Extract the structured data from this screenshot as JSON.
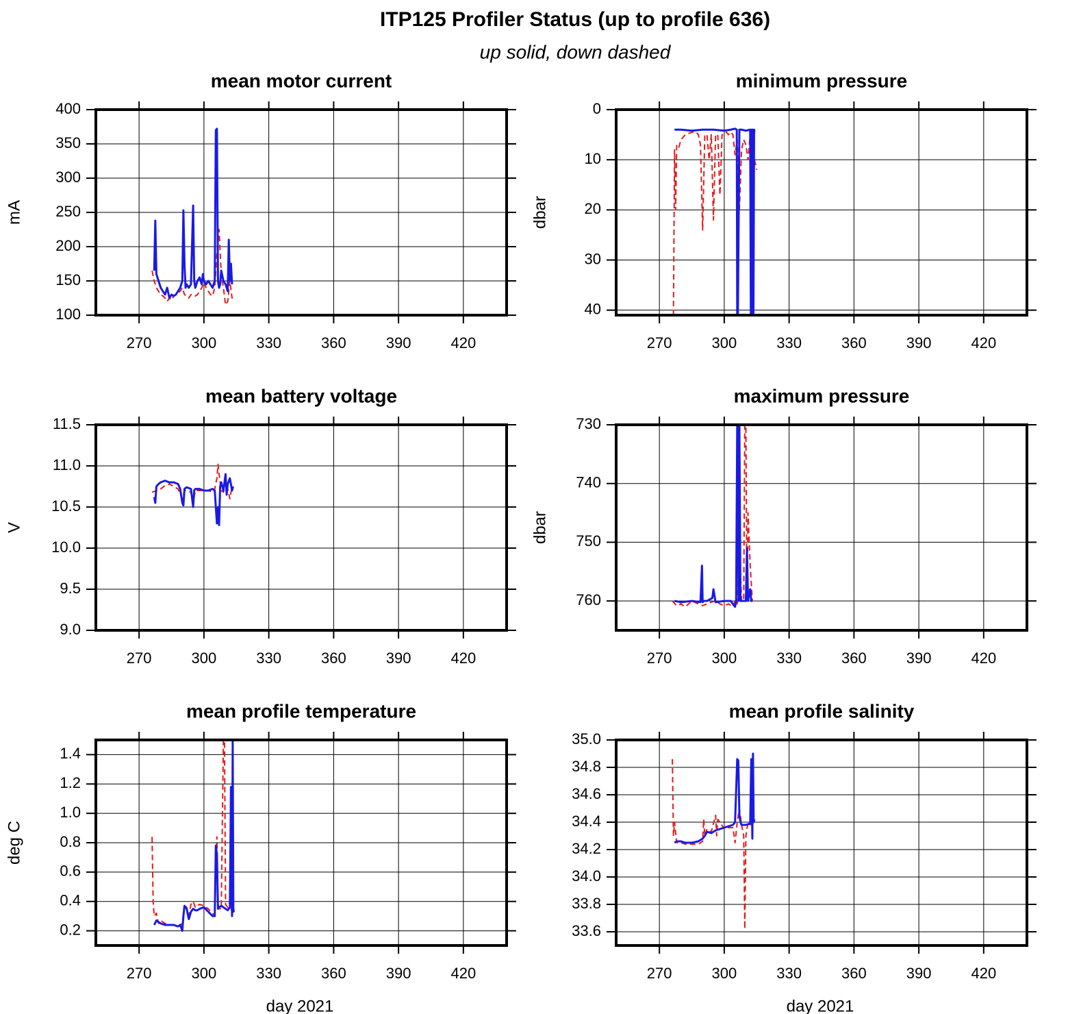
{
  "title": "ITP125 Profiler Status (up to profile 636)",
  "subtitle": "up solid, down dashed",
  "chart_data": [
    {
      "type": "line",
      "title": "mean motor current",
      "y_label": "mA",
      "xlim": [
        250,
        440
      ],
      "xticks": [
        270,
        300,
        330,
        360,
        390,
        420
      ],
      "ylim": [
        100,
        400
      ],
      "yticks": [
        100,
        150,
        200,
        250,
        300,
        350,
        400
      ],
      "y_inverted": false,
      "grid": true,
      "series": [
        {
          "color": "#e41a1c",
          "line_style": "dashed",
          "x": [
            276,
            277,
            278,
            279,
            280,
            281,
            282,
            283,
            284,
            285,
            286,
            287,
            288,
            289,
            290,
            291,
            292,
            293,
            294,
            295,
            296,
            297,
            298,
            299,
            300,
            301,
            302,
            303,
            304,
            305,
            306,
            307,
            308,
            309,
            310,
            311,
            312,
            313,
            314
          ],
          "values": [
            165,
            150,
            140,
            135,
            130,
            128,
            125,
            120,
            125,
            122,
            128,
            130,
            132,
            135,
            140,
            130,
            128,
            125,
            130,
            130,
            128,
            130,
            135,
            140,
            148,
            140,
            135,
            130,
            128,
            140,
            190,
            225,
            160,
            140,
            115,
            120,
            150,
            125,
            130
          ]
        },
        {
          "color": "#1a1ae6",
          "line_style": "solid",
          "x": [
            277,
            277.5,
            278,
            278.5,
            279,
            280,
            281,
            282,
            283,
            284,
            285,
            286,
            287,
            288,
            289,
            290,
            290.5,
            291,
            291.5,
            292,
            293,
            294,
            295,
            295.5,
            296,
            297,
            298,
            299,
            299.5,
            300,
            301,
            302,
            303,
            304,
            305,
            305.5,
            306,
            306.5,
            307,
            307.5,
            308,
            309,
            310,
            311,
            311.5,
            312,
            312.5,
            313
          ],
          "values": [
            165,
            238,
            160,
            155,
            150,
            140,
            135,
            130,
            140,
            125,
            130,
            128,
            130,
            135,
            140,
            150,
            253,
            175,
            140,
            145,
            140,
            145,
            260,
            150,
            140,
            150,
            155,
            145,
            160,
            150,
            145,
            150,
            145,
            140,
            150,
            370,
            372,
            150,
            140,
            145,
            165,
            150,
            145,
            135,
            210,
            150,
            175,
            145
          ]
        }
      ]
    },
    {
      "type": "line",
      "title": "minimum pressure",
      "y_label": "dbar",
      "xlim": [
        250,
        440
      ],
      "xticks": [
        270,
        300,
        330,
        360,
        390,
        420
      ],
      "ylim": [
        0,
        41
      ],
      "yticks": [
        0,
        10,
        20,
        30,
        40
      ],
      "y_inverted": true,
      "grid": true,
      "series": [
        {
          "color": "#e41a1c",
          "line_style": "dashed",
          "x": [
            276.5,
            277,
            277.5,
            278,
            279,
            280,
            282,
            285,
            287,
            288,
            289,
            290,
            291,
            292,
            293,
            294,
            295,
            296,
            297,
            298,
            299,
            300,
            301,
            302,
            303,
            304,
            305,
            306,
            307,
            308,
            309,
            310,
            311,
            312,
            313,
            314,
            315
          ],
          "values": [
            41,
            8,
            20,
            7,
            7.5,
            6,
            5,
            4.5,
            4.5,
            5,
            7,
            24,
            5,
            5,
            10,
            5,
            22,
            5,
            5,
            17,
            5,
            5,
            4.5,
            5,
            4.5,
            5,
            9,
            6,
            20,
            8,
            6,
            7,
            10,
            5,
            8,
            10,
            12
          ]
        },
        {
          "color": "#1a1ae6",
          "line_style": "solid",
          "x": [
            277,
            280,
            285,
            290,
            295,
            300,
            303,
            305,
            305.8,
            306,
            306.3,
            307,
            307.5,
            308,
            310,
            312,
            312.3,
            312.6,
            312.9,
            313.2,
            313.5,
            313.8,
            314
          ],
          "values": [
            4,
            4,
            4.2,
            4,
            4,
            4.2,
            4,
            3.8,
            4,
            41,
            41,
            4,
            4,
            4,
            4.2,
            4,
            41,
            4,
            41,
            4,
            41,
            4,
            4.5
          ]
        }
      ]
    },
    {
      "type": "line",
      "title": "mean battery voltage",
      "y_label": "V",
      "xlim": [
        250,
        440
      ],
      "xticks": [
        270,
        300,
        330,
        360,
        390,
        420
      ],
      "ylim": [
        9,
        11.5
      ],
      "yticks": [
        {
          "value": 9,
          "label": "9.0"
        },
        9.5,
        {
          "value": 10,
          "label": "10.0"
        },
        10.5,
        {
          "value": 11,
          "label": "11.0"
        },
        11.5
      ],
      "y_inverted": false,
      "grid": true,
      "series": [
        {
          "color": "#e41a1c",
          "line_style": "dashed",
          "x": [
            276,
            278,
            280,
            282,
            284,
            286,
            288,
            290,
            291,
            292,
            294,
            295,
            296,
            298,
            300,
            302,
            304,
            305,
            306,
            306.5,
            307,
            308,
            309,
            310,
            311,
            312,
            313
          ],
          "values": [
            10.68,
            10.7,
            10.72,
            10.76,
            10.78,
            10.75,
            10.72,
            10.6,
            10.7,
            10.7,
            10.68,
            10.55,
            10.7,
            10.7,
            10.7,
            10.7,
            10.68,
            10.72,
            10.85,
            11.02,
            10.9,
            10.7,
            10.68,
            10.75,
            10.72,
            10.6,
            10.75
          ]
        },
        {
          "color": "#1a1ae6",
          "line_style": "solid",
          "x": [
            277,
            277.5,
            278,
            279,
            280,
            282,
            284,
            286,
            288,
            289,
            290,
            290.5,
            291,
            292,
            294,
            295,
            295.5,
            296,
            298,
            300,
            302,
            304,
            305,
            306,
            306.5,
            307,
            307.5,
            308,
            309,
            310,
            310.5,
            311,
            312,
            313,
            313.5
          ],
          "values": [
            10.62,
            10.55,
            10.75,
            10.78,
            10.8,
            10.82,
            10.8,
            10.8,
            10.78,
            10.72,
            10.55,
            10.52,
            10.72,
            10.74,
            10.72,
            10.5,
            10.7,
            10.72,
            10.72,
            10.7,
            10.7,
            10.72,
            10.7,
            10.3,
            10.5,
            10.28,
            10.75,
            10.8,
            10.7,
            10.9,
            10.65,
            10.78,
            10.85,
            10.7,
            10.75
          ]
        }
      ]
    },
    {
      "type": "line",
      "title": "maximum pressure",
      "y_label": "dbar",
      "xlim": [
        250,
        440
      ],
      "xticks": [
        270,
        300,
        330,
        360,
        390,
        420
      ],
      "ylim": [
        730,
        765
      ],
      "yticks": [
        730,
        740,
        750,
        760
      ],
      "y_inverted": true,
      "grid": true,
      "series": [
        {
          "color": "#e41a1c",
          "line_style": "dashed",
          "x": [
            276,
            278,
            280,
            282,
            285,
            288,
            290,
            292,
            294,
            296,
            298,
            300,
            302,
            304,
            305,
            306,
            307,
            308,
            309,
            309.5,
            310,
            310.5,
            311,
            312,
            313
          ],
          "values": [
            760,
            760.8,
            760.5,
            761,
            760,
            760.5,
            760.8,
            760.5,
            760.2,
            760,
            760.5,
            760.8,
            760.5,
            761,
            760,
            760.5,
            750,
            760,
            760,
            730,
            730,
            760,
            745,
            754,
            760
          ]
        },
        {
          "color": "#1a1ae6",
          "line_style": "solid",
          "x": [
            277,
            280,
            285,
            289,
            289.7,
            290,
            290.5,
            292,
            294.5,
            295,
            296,
            300,
            303,
            305,
            305.5,
            306,
            306.3,
            306.6,
            307,
            307.5,
            308,
            309,
            310,
            310.5,
            311,
            312,
            312.5,
            313
          ],
          "values": [
            760,
            760.2,
            760,
            760.2,
            754,
            760.2,
            760,
            760,
            759.5,
            758,
            760.2,
            760,
            760,
            761,
            760,
            730,
            730,
            760,
            730,
            760,
            760,
            760,
            760,
            751,
            760,
            758,
            760,
            760
          ]
        }
      ]
    },
    {
      "type": "line",
      "title": "mean profile temperature",
      "y_label": "deg C",
      "x_label": "day 2021",
      "xlim": [
        250,
        440
      ],
      "xticks": [
        270,
        300,
        330,
        360,
        390,
        420
      ],
      "ylim": [
        0.1,
        1.5
      ],
      "yticks": [
        0.2,
        0.4,
        0.6,
        0.8,
        {
          "value": 1,
          "label": "1.0"
        },
        1.2,
        1.4
      ],
      "y_inverted": false,
      "grid": true,
      "series": [
        {
          "color": "#e41a1c",
          "line_style": "dashed",
          "x": [
            276,
            276.5,
            277,
            278,
            279,
            280,
            282,
            285,
            288,
            290,
            291,
            292,
            293,
            294,
            295,
            296,
            298,
            300,
            302,
            304,
            305,
            306,
            306.5,
            307,
            308,
            309,
            309.5,
            310,
            311,
            312,
            313,
            314
          ],
          "values": [
            0.84,
            0.4,
            0.3,
            0.32,
            0.25,
            0.27,
            0.25,
            0.24,
            0.23,
            0.25,
            0.38,
            0.36,
            0.3,
            0.38,
            0.4,
            0.36,
            0.38,
            0.37,
            0.35,
            0.32,
            0.3,
            0.84,
            0.38,
            0.35,
            0.35,
            1.5,
            1.5,
            0.38,
            0.36,
            0.4,
            0.32,
            0.35
          ]
        },
        {
          "color": "#1a1ae6",
          "line_style": "solid",
          "x": [
            277,
            278,
            279,
            280,
            282,
            284,
            286,
            288,
            289,
            290,
            290.5,
            291,
            292,
            293,
            294,
            295,
            296,
            297,
            298,
            300,
            302,
            304,
            305,
            305.5,
            306,
            306.5,
            307,
            308,
            309,
            310,
            311,
            312,
            312.5,
            313,
            313.3,
            313.6,
            314
          ],
          "values": [
            0.24,
            0.27,
            0.26,
            0.25,
            0.24,
            0.24,
            0.24,
            0.23,
            0.24,
            0.2,
            0.3,
            0.37,
            0.35,
            0.28,
            0.33,
            0.35,
            0.34,
            0.34,
            0.35,
            0.36,
            0.33,
            0.3,
            0.3,
            0.78,
            0.72,
            0.35,
            0.36,
            0.37,
            0.36,
            0.35,
            0.34,
            0.36,
            1.18,
            0.3,
            1.5,
            0.33,
            0.34
          ]
        }
      ]
    },
    {
      "type": "line",
      "title": "mean profile salinity",
      "x_label": "day 2021",
      "xlim": [
        250,
        440
      ],
      "xticks": [
        270,
        300,
        330,
        360,
        390,
        420
      ],
      "ylim": [
        33.5,
        35
      ],
      "yticks": [
        33.6,
        33.8,
        {
          "value": 34,
          "label": "34.0"
        },
        34.2,
        34.4,
        34.6,
        34.8,
        {
          "value": 35,
          "label": "35.0"
        }
      ],
      "y_inverted": false,
      "grid": true,
      "series": [
        {
          "color": "#e41a1c",
          "line_style": "dashed",
          "x": [
            276,
            276.5,
            277,
            278,
            280,
            282,
            285,
            288,
            290,
            290.5,
            291,
            292,
            294,
            296,
            296.5,
            297,
            298,
            300,
            302,
            304,
            305,
            306,
            307,
            308,
            309,
            309.5,
            310,
            311,
            312,
            313,
            314
          ],
          "values": [
            34.86,
            34.3,
            34.4,
            34.25,
            34.25,
            34.24,
            34.24,
            34.24,
            34.26,
            34.42,
            34.3,
            34.35,
            34.33,
            34.45,
            34.3,
            34.42,
            34.4,
            34.35,
            34.36,
            34.36,
            34.25,
            34.4,
            34.5,
            34.38,
            34.3,
            33.62,
            34.3,
            34.4,
            34.38,
            34.4,
            34.4
          ]
        },
        {
          "color": "#1a1ae6",
          "line_style": "solid",
          "x": [
            277,
            278,
            280,
            282,
            285,
            288,
            290,
            291,
            292,
            294,
            296,
            298,
            300,
            302,
            304,
            305,
            306,
            306.5,
            307,
            307.5,
            308,
            310,
            312,
            312.5,
            313,
            313.3,
            313.6,
            314
          ],
          "values": [
            34.25,
            34.26,
            34.26,
            34.25,
            34.25,
            34.26,
            34.28,
            34.3,
            34.33,
            34.32,
            34.34,
            34.35,
            34.36,
            34.37,
            34.38,
            34.4,
            34.86,
            34.85,
            34.45,
            34.4,
            34.38,
            34.38,
            34.39,
            34.86,
            34.28,
            34.9,
            34.4,
            34.42
          ]
        }
      ]
    }
  ]
}
